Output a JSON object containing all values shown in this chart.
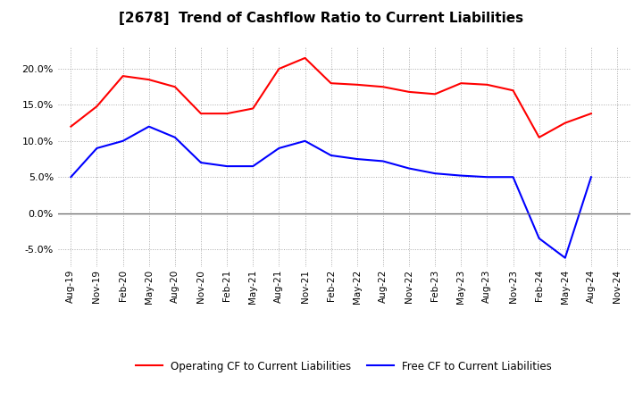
{
  "title": "[2678]  Trend of Cashflow Ratio to Current Liabilities",
  "x_labels": [
    "Aug-19",
    "Nov-19",
    "Feb-20",
    "May-20",
    "Aug-20",
    "Nov-20",
    "Feb-21",
    "May-21",
    "Aug-21",
    "Nov-21",
    "Feb-22",
    "May-22",
    "Aug-22",
    "Nov-22",
    "Feb-23",
    "May-23",
    "Aug-23",
    "Nov-23",
    "Feb-24",
    "May-24",
    "Aug-24",
    "Nov-24"
  ],
  "operating_cf": [
    12.0,
    14.8,
    19.0,
    18.5,
    17.5,
    13.8,
    13.8,
    14.5,
    20.0,
    21.5,
    18.0,
    17.8,
    17.5,
    16.8,
    16.5,
    18.0,
    17.8,
    17.0,
    10.5,
    12.5,
    13.8,
    null
  ],
  "free_cf": [
    5.0,
    9.0,
    10.0,
    12.0,
    10.5,
    7.0,
    6.5,
    6.5,
    9.0,
    10.0,
    8.0,
    7.5,
    7.2,
    6.2,
    5.5,
    5.2,
    5.0,
    5.0,
    null,
    null,
    null,
    null
  ],
  "free_cf_extended": [
    5.0,
    9.0,
    10.0,
    12.0,
    10.5,
    7.0,
    6.5,
    6.5,
    9.0,
    10.0,
    8.0,
    7.5,
    7.2,
    6.2,
    5.5,
    5.2,
    5.0,
    5.0,
    -3.5,
    -6.2,
    5.0,
    null
  ],
  "operating_color": "#ff0000",
  "free_color": "#0000ff",
  "ylim": [
    -7.5,
    23.0
  ],
  "yticks": [
    -5.0,
    0.0,
    5.0,
    10.0,
    15.0,
    20.0
  ],
  "legend_operating": "Operating CF to Current Liabilities",
  "legend_free": "Free CF to Current Liabilities",
  "bg_color": "#ffffff",
  "grid_color": "#aaaaaa"
}
